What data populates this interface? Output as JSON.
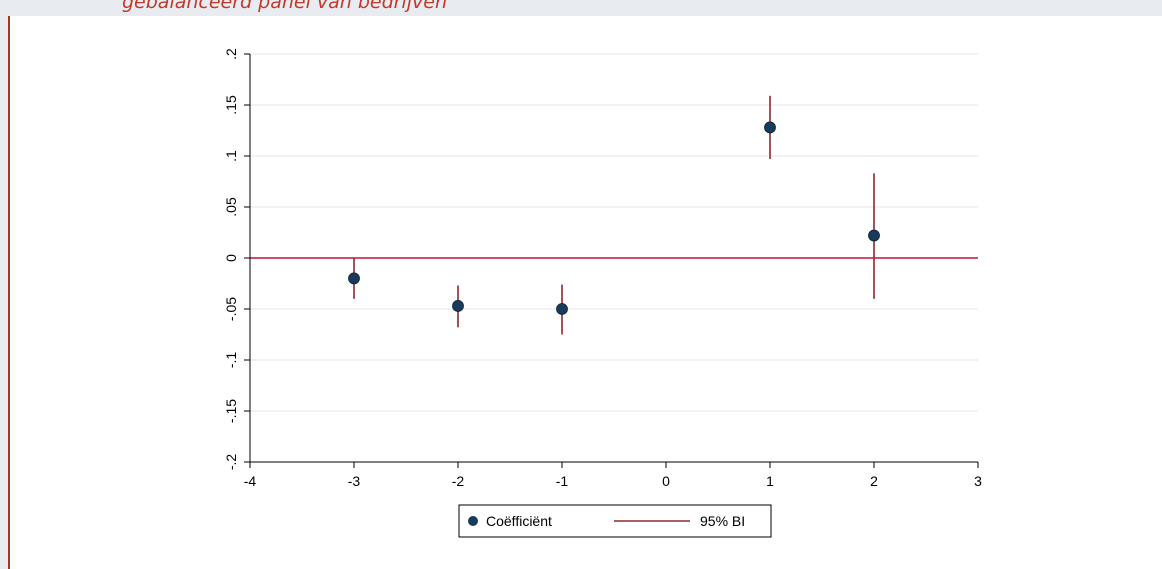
{
  "header": {
    "caption": "gebalanceerd panel van bedrijven"
  },
  "colors": {
    "marker": "#1a3a5c",
    "ci_line": "#8b2a2a",
    "zero_line": "#c0143c",
    "grid": "#e6e6e6",
    "caption": "#c0392b"
  },
  "chart_data": {
    "type": "scatter",
    "title": "",
    "xlabel": "",
    "ylabel": "",
    "xlim": [
      -4,
      3
    ],
    "ylim": [
      -0.2,
      0.2
    ],
    "x_ticks": [
      -4,
      -3,
      -2,
      -1,
      0,
      1,
      2,
      3
    ],
    "x_tick_labels": [
      "-4",
      "-3",
      "-2",
      "-1",
      "0",
      "1",
      "2",
      "3"
    ],
    "y_ticks": [
      -0.2,
      -0.15,
      -0.1,
      -0.05,
      0,
      0.05,
      0.1,
      0.15,
      0.2
    ],
    "y_tick_labels": [
      "-.2",
      "-.15",
      "-.1",
      "-.05",
      "0",
      ".05",
      ".1",
      ".15",
      ".2"
    ],
    "grid": true,
    "reference_line_y": 0,
    "legend_position": "bottom",
    "series": [
      {
        "name": "Coëfficiënt",
        "kind": "point",
        "x": [
          -3,
          -2,
          -1,
          1,
          2
        ],
        "y": [
          -0.02,
          -0.047,
          -0.05,
          0.128,
          0.022
        ]
      },
      {
        "name": "95% BI",
        "kind": "error_bar",
        "x": [
          -3,
          -2,
          -1,
          1,
          2
        ],
        "low": [
          -0.04,
          -0.068,
          -0.075,
          0.097,
          -0.04
        ],
        "high": [
          0.0,
          -0.027,
          -0.026,
          0.159,
          0.083
        ]
      }
    ]
  }
}
